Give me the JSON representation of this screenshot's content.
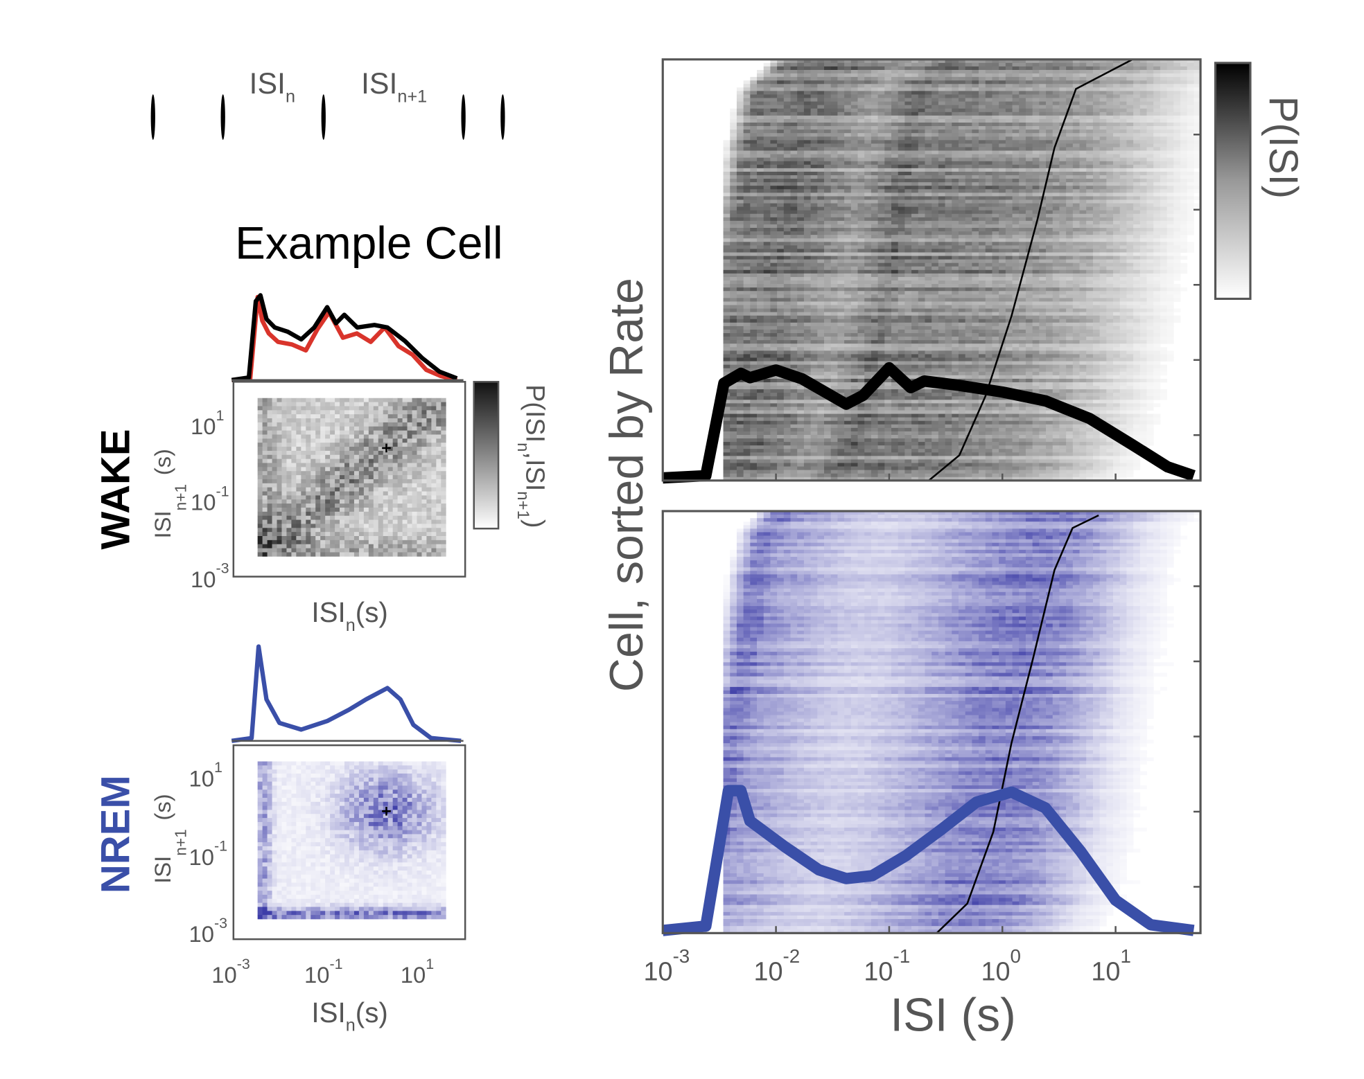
{
  "schematic": {
    "label_n": "ISI",
    "sub_n": "n",
    "label_n1": "ISI",
    "sub_n1": "n+1"
  },
  "colors": {
    "wake": "#000000",
    "wake_alt": "#d9342b",
    "nrem": "#3a4fa8",
    "nrem_heat": "#3d3da8",
    "axis": "#555555"
  },
  "chart_data": [
    {
      "type": "line",
      "panel": "example-cell-marginals",
      "title": "Example Cell",
      "x_scale": "log",
      "xlim_log10": [
        -3,
        2
      ],
      "series": [
        {
          "state": "WAKE",
          "color": "#000000",
          "x_log10": [
            -3,
            -2.63,
            -2.48,
            -2.38,
            -2.25,
            -2.07,
            -1.79,
            -1.5,
            -1.22,
            -0.94,
            -0.75,
            -0.57,
            -0.29,
            0.08,
            0.36,
            0.74,
            1.11,
            1.48,
            1.86
          ],
          "values": [
            0,
            0.03,
            0.93,
            1.0,
            0.72,
            0.62,
            0.57,
            0.48,
            0.62,
            0.86,
            0.67,
            0.77,
            0.62,
            0.65,
            0.62,
            0.46,
            0.26,
            0.1,
            0.02
          ]
        },
        {
          "state": "WAKE",
          "color": "#d9342b",
          "x_log10": [
            -3,
            -2.6,
            -2.44,
            -2.34,
            -2.2,
            -2.0,
            -1.7,
            -1.4,
            -1.15,
            -0.9,
            -0.6,
            -0.3,
            0,
            0.3,
            0.6,
            0.9,
            1.2,
            1.5,
            1.86
          ],
          "values": [
            0,
            0.02,
            0.98,
            0.7,
            0.55,
            0.45,
            0.42,
            0.35,
            0.6,
            0.8,
            0.5,
            0.55,
            0.45,
            0.62,
            0.4,
            0.3,
            0.12,
            0.05,
            0.0
          ]
        },
        {
          "state": "NREM",
          "color": "#3a4fa8",
          "x_log10": [
            -3,
            -2.57,
            -2.42,
            -2.25,
            -1.97,
            -1.5,
            -0.94,
            -0.47,
            -0.1,
            0.36,
            0.64,
            0.92,
            1.3,
            1.95
          ],
          "values": [
            0,
            0.03,
            1.0,
            0.44,
            0.19,
            0.12,
            0.21,
            0.33,
            0.44,
            0.56,
            0.44,
            0.17,
            0.03,
            0
          ]
        }
      ]
    },
    {
      "type": "heatmap",
      "panel": "example-cell-return-map",
      "rows": [
        {
          "state": "WAKE",
          "xlabel": "ISI",
          "xlabel_sub": "n",
          "xlabel_unit": "(s)",
          "ylabel": "ISI",
          "ylabel_sub": "n+1",
          "ylabel_unit": "(s)",
          "colorbar_label": "P(ISI",
          "colorbar_sub1": "n",
          "colorbar_mid": ",ISI",
          "colorbar_sub2": "n+1",
          "colorbar_end": ")",
          "marker_log10": [
            0.3,
            0.3
          ]
        },
        {
          "state": "NREM",
          "xlabel": "ISI",
          "xlabel_sub": "n",
          "xlabel_unit": "(s)",
          "ylabel": "ISI",
          "ylabel_sub": "n+1",
          "ylabel_unit": "(s)",
          "marker_log10": [
            0.3,
            0.3
          ]
        }
      ],
      "ticks": [
        {
          "base": "10",
          "exp": "-3"
        },
        {
          "base": "10",
          "exp": "-1"
        },
        {
          "base": "10",
          "exp": "1"
        }
      ],
      "lim_log10": [
        -3,
        2
      ]
    },
    {
      "type": "heatmap",
      "panel": "population-isi-distributions",
      "xlabel": "ISI (s)",
      "ylabel": "Cell, sorted by Rate",
      "colorbar_label": "P(ISI)",
      "x_scale": "log",
      "xlim_log10": [
        -3,
        1.75
      ],
      "xticks": [
        {
          "base": "10",
          "exp": "-3"
        },
        {
          "base": "10",
          "exp": "-2"
        },
        {
          "base": "10",
          "exp": "-1"
        },
        {
          "base": "10",
          "exp": "0"
        },
        {
          "base": "10",
          "exp": "1"
        }
      ],
      "mean_curves": [
        {
          "state": "WAKE",
          "color": "#000000",
          "x_log10": [
            -3,
            -2.62,
            -2.46,
            -2.31,
            -2.23,
            -2.0,
            -1.77,
            -1.38,
            -1.23,
            -1.0,
            -0.81,
            -0.69,
            -0.38,
            0,
            0.38,
            0.77,
            1.15,
            1.46,
            1.69
          ],
          "values": [
            0,
            0.02,
            0.86,
            0.95,
            0.91,
            0.98,
            0.9,
            0.67,
            0.75,
            1.0,
            0.82,
            0.88,
            0.84,
            0.78,
            0.7,
            0.54,
            0.3,
            0.1,
            0.02
          ]
        },
        {
          "state": "NREM",
          "color": "#3a4fa8",
          "x_log10": [
            -3,
            -2.62,
            -2.42,
            -2.31,
            -2.23,
            -1.92,
            -1.62,
            -1.38,
            -1.15,
            -0.85,
            -0.54,
            -0.23,
            0.08,
            0.38,
            0.69,
            1.0,
            1.31,
            1.69
          ],
          "values": [
            0,
            0.03,
            0.97,
            0.97,
            0.76,
            0.58,
            0.42,
            0.36,
            0.38,
            0.52,
            0.7,
            0.89,
            0.96,
            0.85,
            0.55,
            0.21,
            0.04,
            0
          ]
        }
      ],
      "mean_isi_by_rank": [
        {
          "state": "WAKE",
          "x_log10": [
            -0.65,
            -0.38,
            -0.15,
            0.08,
            0.31,
            0.46,
            0.65,
            1.15
          ],
          "rank_fraction": [
            0,
            0.06,
            0.2,
            0.39,
            0.62,
            0.79,
            0.93,
            1.0
          ]
        },
        {
          "state": "NREM",
          "x_log10": [
            -0.58,
            -0.31,
            -0.08,
            0.08,
            0.27,
            0.46,
            0.62,
            0.85
          ],
          "rank_fraction": [
            0,
            0.07,
            0.24,
            0.45,
            0.65,
            0.86,
            0.96,
            0.99
          ]
        }
      ]
    }
  ]
}
